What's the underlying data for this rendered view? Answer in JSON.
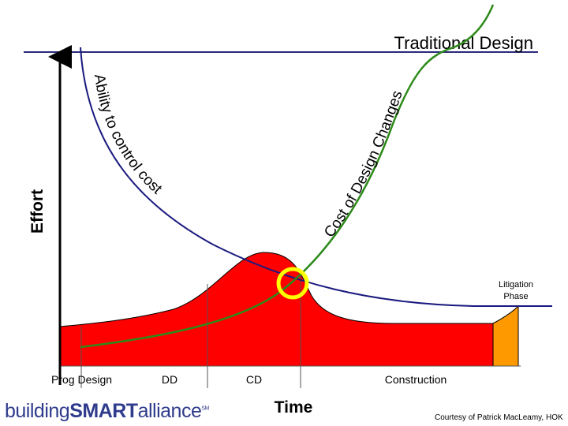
{
  "title": "Traditional Design",
  "y_axis_label": "Effort",
  "x_axis_label": "Time",
  "curve_labels": {
    "ability": "Ability to control cost",
    "cost": "Cost of Design Changes"
  },
  "phases": {
    "prog_design": "Prog  Design",
    "dd": "DD",
    "cd": "CD",
    "construction": "Construction",
    "litigation_line1": "Litigation",
    "litigation_line2": "Phase"
  },
  "logo": {
    "prefix": "building",
    "bold": "SMART",
    "suffix": "alliance",
    "mark": "SM"
  },
  "credit": "Courtesy of Patrick MacLeamy, HOK",
  "colors": {
    "effort_fill": "#ff0000",
    "litigation_fill": "#ff9900",
    "ability_curve": "#1a1a80",
    "cost_curve": "#2d8a1a",
    "highlight_ring": "#ffff00",
    "rule_line": "#2a2a7a"
  }
}
